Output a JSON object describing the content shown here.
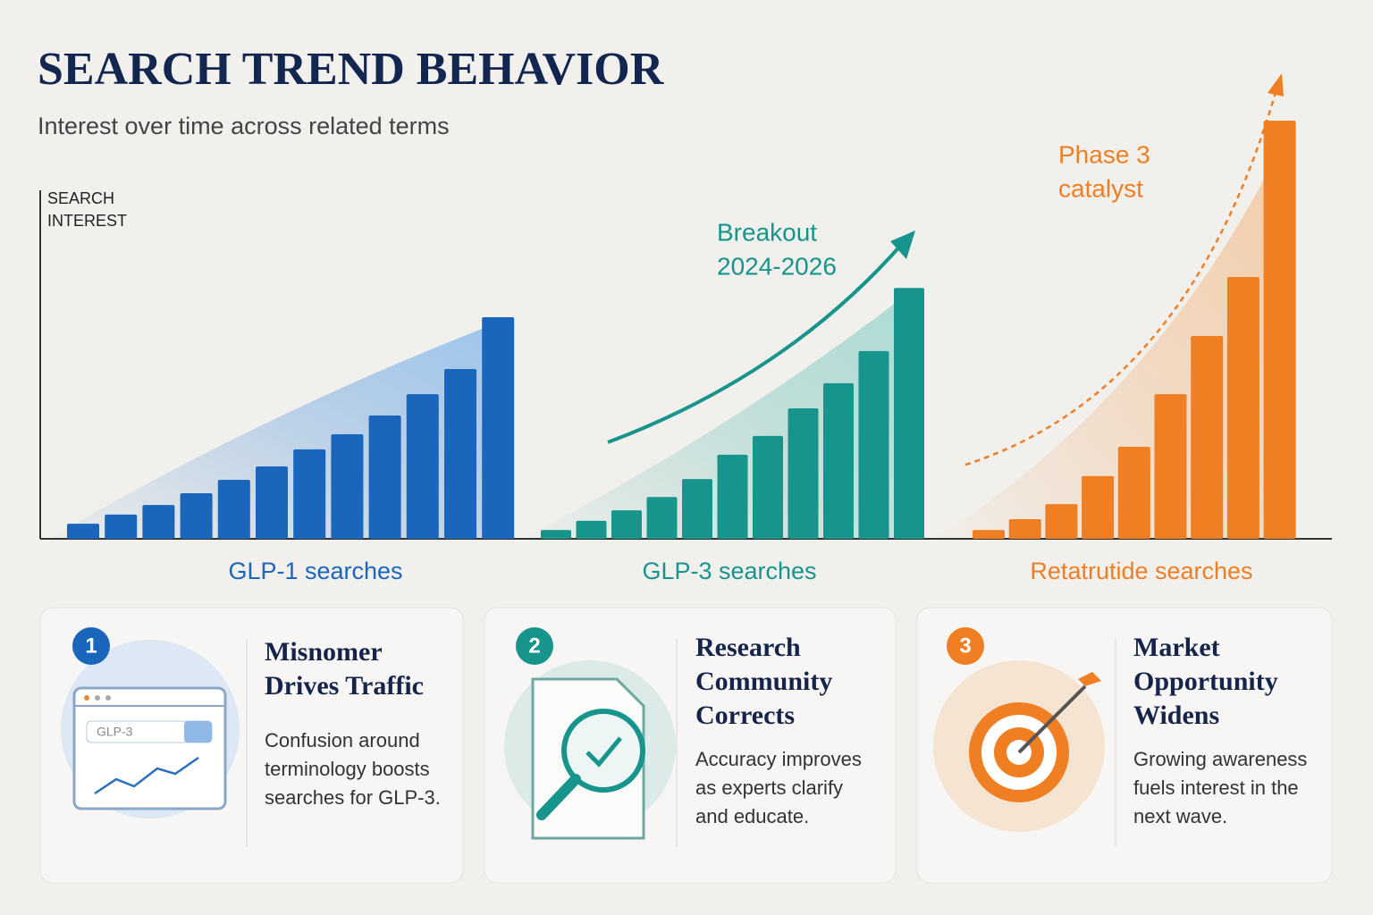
{
  "title": "SEARCH TREND BEHAVIOR",
  "subtitle": "Interest over time across related terms",
  "chart_data": {
    "type": "bar",
    "y_label": [
      "SEARCH",
      "INTEREST"
    ],
    "ylim": [
      0,
      100
    ],
    "series": [
      {
        "name": "GLP-1 searches",
        "color": "#1a66bd",
        "values": [
          3.6,
          5.8,
          8.1,
          10.9,
          14.1,
          17.3,
          21.4,
          25,
          29.5,
          34.6,
          40.6,
          53
        ]
      },
      {
        "name": "GLP-3 searches",
        "color": "#17948b",
        "values": [
          2.1,
          4.3,
          6.8,
          10,
          14.3,
          20.1,
          24.6,
          31.2,
          37.2,
          44.9,
          60
        ]
      },
      {
        "name": "Retatrutide searches",
        "color": "#ef7f22",
        "values": [
          2.1,
          4.7,
          8.3,
          15,
          22,
          34.6,
          48.5,
          62.6,
          100
        ]
      }
    ],
    "annotations": [
      [
        "Breakout",
        "2024-2026"
      ],
      [
        "Phase 3",
        "catalyst"
      ]
    ]
  },
  "cards": [
    {
      "number": 1,
      "title": [
        "Misnomer",
        "Drives Traffic"
      ],
      "text": [
        "Confusion around",
        "terminology boosts",
        "searches for GLP-3."
      ],
      "search_box": "GLP-3"
    },
    {
      "number": 2,
      "title": [
        "Research",
        "Community",
        "Corrects"
      ],
      "text": [
        "Accuracy improves",
        "as experts clarify",
        "and educate."
      ]
    },
    {
      "number": 3,
      "title": [
        "Market",
        "Opportunity",
        "Widens"
      ],
      "text": [
        "Growing awareness",
        "fuels interest in the",
        "next wave."
      ]
    }
  ]
}
